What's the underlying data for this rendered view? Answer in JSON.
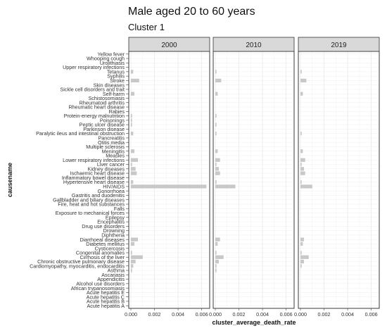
{
  "chart_data": {
    "type": "bar",
    "orientation": "horizontal",
    "title": "Male aged 20 to 60 years",
    "subtitle": "Cluster 1",
    "xlabel": "cluster_average_death_rate",
    "ylabel": "causename",
    "xlim": [
      0,
      0.0065
    ],
    "xticks": [
      "0.000",
      "0.002",
      "0.004",
      "0.006"
    ],
    "grid": true,
    "bar_color": "#c8c8c8",
    "panel_header_color": "#d9d9d9",
    "categories": [
      "Yellow fever",
      "Whooping cough",
      "Urolithiasis",
      "Upper respiratory infections",
      "Tetanus",
      "Syphilis",
      "Stroke",
      "Skin diseases",
      "Sickle cell disorders and trait",
      "Self-harm",
      "Schistosomiasis",
      "Rheumatoid arthritis",
      "Rheumatic heart disease",
      "Rabies",
      "Protein-energy malnutrition",
      "Poisonings",
      "Peptic ulcer disease",
      "Parkinson disease",
      "Paralytic ileus and intestinal obstruction",
      "Pancreatitis",
      "Otitis media",
      "Multiple sclerosis",
      "Meningitis",
      "Measles",
      "Lower respiratory infections",
      "Liver cancer",
      "Kidney diseases",
      "Ischaemic heart disease",
      "Inflammatory bowel disease",
      "Hypertensive heart disease",
      "HIV/AIDS",
      "Gonorrhoea",
      "Gastritis and duodenitis",
      "Gallbladder and biliary diseases",
      "Fire, heat and hot substances",
      "Falls",
      "Exposure to mechanical forces",
      "Epilepsy",
      "Encephalitis",
      "Drug use disorders",
      "Drowning",
      "Diphtheria",
      "Diarrhoeal diseases",
      "Diabetes mellitus",
      "Cysticercosis",
      "Congenital anomalies",
      "Cirrhosis of the liver",
      "Chronic obstructive pulmonary disease",
      "Cardiomyopathy, myocarditis, endocarditis",
      "Asthma",
      "Ascariasis",
      "Appendicitis",
      "Alcohol use disorders",
      "African trypanosomiasis",
      "Acute hepatitis E",
      "Acute hepatitis C",
      "Acute hepatitis B",
      "Acute hepatitis A"
    ],
    "series": [
      {
        "name": "2000",
        "values": [
          0,
          0,
          0,
          0,
          0.0002,
          0,
          0.0007,
          0,
          0,
          0.0003,
          0,
          0,
          0,
          0,
          0.0001,
          0.0001,
          0.0001,
          0,
          0.0002,
          0,
          0,
          0,
          0.0003,
          0,
          0.0006,
          0.0001,
          0.0004,
          0.0005,
          0,
          0.0002,
          0.0064,
          0,
          0,
          0,
          0,
          0,
          0,
          0,
          0,
          0,
          0,
          0,
          0.0006,
          0.0003,
          0,
          0.0001,
          0.001,
          0.0004,
          0.0002,
          0.0001,
          0,
          0,
          0,
          0,
          0,
          0,
          0,
          0
        ]
      },
      {
        "name": "2010",
        "values": [
          0,
          0,
          0,
          0,
          0.0001,
          0,
          0.0005,
          0,
          0,
          0.0002,
          0,
          0,
          0,
          0,
          0.0001,
          0,
          0.0001,
          0,
          0.0001,
          0,
          0,
          0,
          0.0002,
          0,
          0.0004,
          0.0001,
          0.0003,
          0.0004,
          0,
          0.0001,
          0.0017,
          0,
          0,
          0,
          0,
          0,
          0,
          0,
          0,
          0,
          0,
          0,
          0.0004,
          0.0002,
          0,
          0.0001,
          0.0007,
          0.0003,
          0.0001,
          0.0001,
          0,
          0,
          0,
          0,
          0,
          0,
          0,
          0
        ]
      },
      {
        "name": "2019",
        "values": [
          0,
          0,
          0,
          0,
          0.0001,
          0,
          0.0005,
          0,
          0,
          0.0002,
          0,
          0,
          0,
          0,
          0,
          0,
          0,
          0,
          0.0001,
          0,
          0,
          0,
          0.0002,
          0,
          0.0004,
          0.0001,
          0.0003,
          0.0004,
          0,
          0.0001,
          0.001,
          0,
          0,
          0,
          0,
          0,
          0,
          0,
          0,
          0,
          0,
          0,
          0.0003,
          0.0002,
          0,
          0.0001,
          0.0007,
          0.0003,
          0.0001,
          0,
          0,
          0,
          0,
          0,
          0,
          0,
          0,
          0
        ]
      }
    ]
  }
}
